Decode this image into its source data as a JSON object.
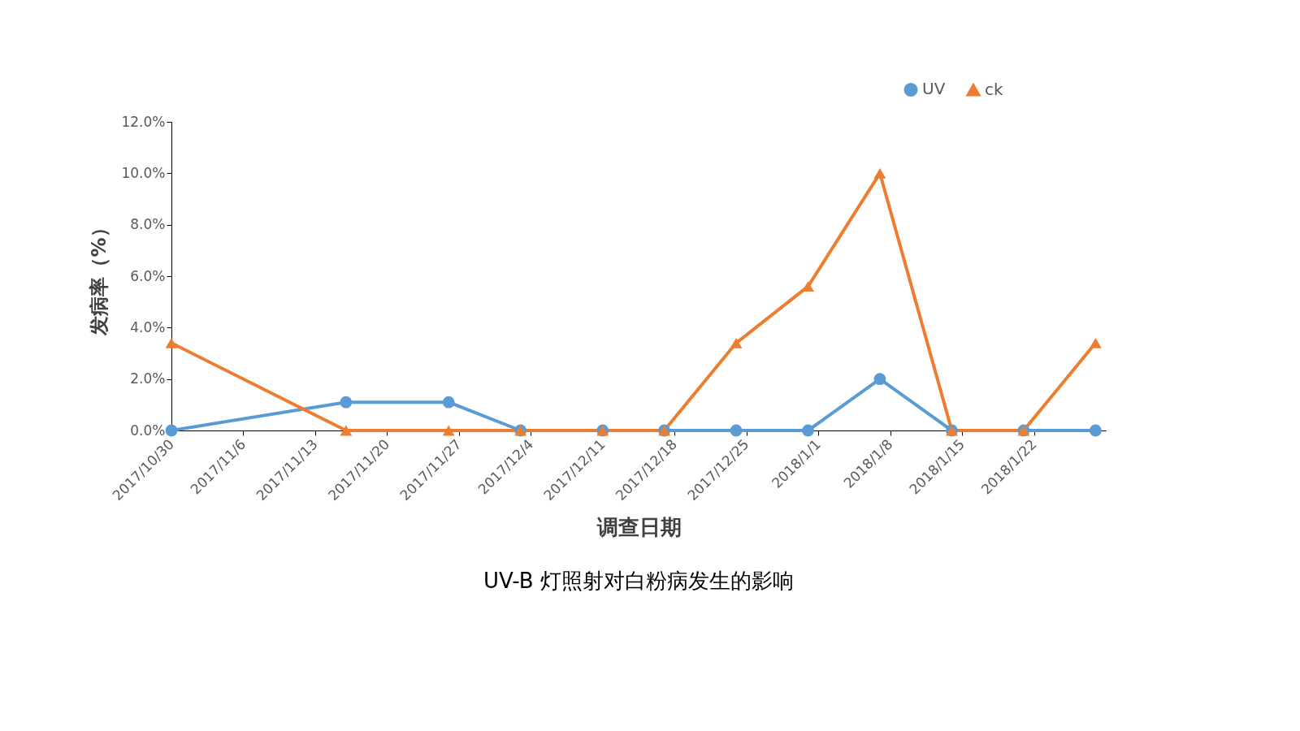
{
  "chart_data": {
    "type": "line",
    "title": "UV-B 灯照射对白粉病发生的影响",
    "xlabel": "调查日期",
    "ylabel": "发病率（%）",
    "x": [
      "2017-10-30",
      "2017-11-16",
      "2017-11-26",
      "2017-12-03",
      "2017-12-11",
      "2017-12-17",
      "2017-12-24",
      "2017-12-31",
      "2018-01-07",
      "2018-01-14",
      "2018-01-21",
      "2018-01-28"
    ],
    "series": [
      {
        "name": "UV",
        "color": "#5b9bd5",
        "marker": "circle",
        "values": [
          0,
          1.1,
          1.1,
          0,
          0,
          0,
          0,
          0,
          2.0,
          0,
          0,
          0
        ]
      },
      {
        "name": "ck",
        "color": "#ed7d31",
        "marker": "triangle",
        "values": [
          3.4,
          0,
          0,
          0,
          0,
          0,
          3.4,
          5.6,
          10.0,
          0,
          0,
          3.4
        ]
      }
    ],
    "xlim": [
      "2017-10-30",
      "2018-01-29"
    ],
    "xticks": [
      {
        "value": "2017-10-30",
        "label": "2017/10/30"
      },
      {
        "value": "2017-11-06",
        "label": "2017/11/6"
      },
      {
        "value": "2017-11-13",
        "label": "2017/11/13"
      },
      {
        "value": "2017-11-20",
        "label": "2017/11/20"
      },
      {
        "value": "2017-11-27",
        "label": "2017/11/27"
      },
      {
        "value": "2017-12-04",
        "label": "2017/12/4"
      },
      {
        "value": "2017-12-11",
        "label": "2017/12/11"
      },
      {
        "value": "2017-12-18",
        "label": "2017/12/18"
      },
      {
        "value": "2017-12-25",
        "label": "2017/12/25"
      },
      {
        "value": "2018-01-01",
        "label": "2018/1/1"
      },
      {
        "value": "2018-01-08",
        "label": "2018/1/8"
      },
      {
        "value": "2018-01-15",
        "label": "2018/1/15"
      },
      {
        "value": "2018-01-22",
        "label": "2018/1/22"
      }
    ],
    "ylim": [
      0,
      12
    ],
    "yticks": [
      {
        "value": 0,
        "label": "0.0%"
      },
      {
        "value": 2,
        "label": "2.0%"
      },
      {
        "value": 4,
        "label": "4.0%"
      },
      {
        "value": 6,
        "label": "6.0%"
      },
      {
        "value": 8,
        "label": "8.0%"
      },
      {
        "value": 10,
        "label": "10.0%"
      },
      {
        "value": 12,
        "label": "12.0%"
      }
    ],
    "grid": false,
    "legend": "top right",
    "line_style": "solid"
  }
}
